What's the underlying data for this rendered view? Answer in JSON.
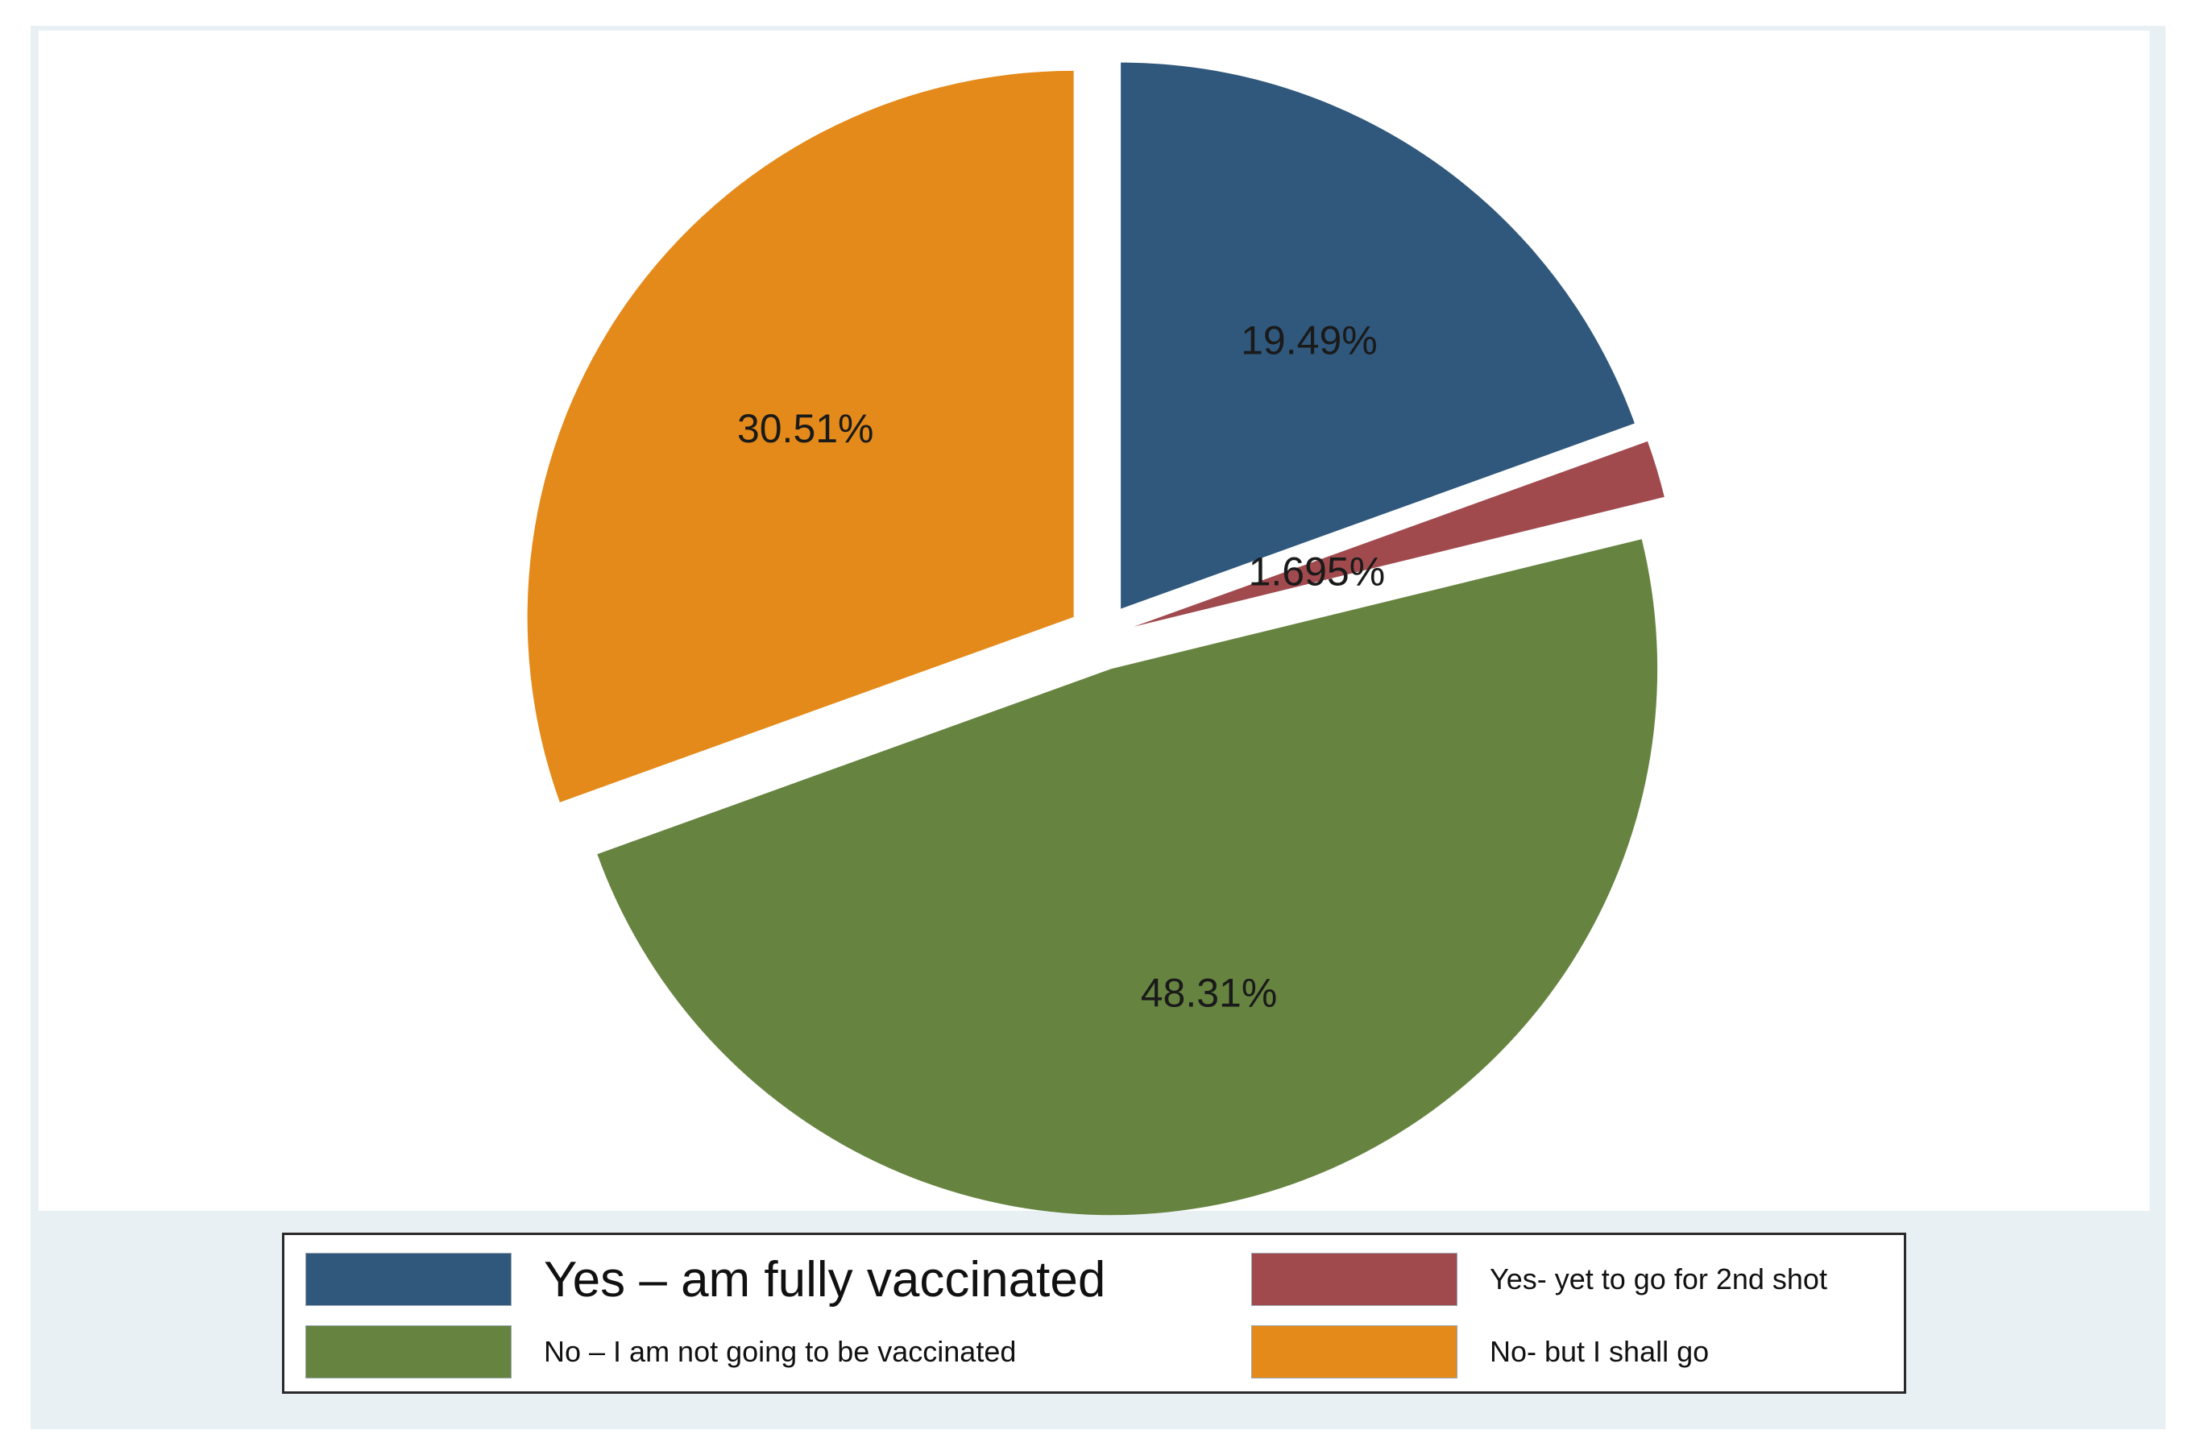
{
  "chart_data": {
    "type": "pie",
    "title": "",
    "slices": [
      {
        "name": "Yes – am fully vaccinated",
        "value": 19.49,
        "label": "19.49%",
        "color": "#30587c",
        "exploded": true
      },
      {
        "name": "Yes- yet to go for 2nd shot",
        "value": 1.695,
        "label": "1.695%",
        "color": "#a04a4e",
        "exploded": true
      },
      {
        "name": "No – I am not going to be vaccinated",
        "value": 48.31,
        "label": "48.31%",
        "color": "#668440",
        "exploded": true
      },
      {
        "name": "No- but I shall go",
        "value": 30.51,
        "label": "30.51%",
        "color": "#e48a1a",
        "exploded": true
      }
    ],
    "start_angle": "12 o'clock",
    "direction": "clockwise",
    "legend": {
      "placement": "bottom",
      "columns": 2,
      "items": [
        "Yes – am fully vaccinated",
        "Yes- yet to go for 2nd shot",
        "No – I am not going to be vaccinated",
        "No- but I shall go"
      ]
    }
  }
}
